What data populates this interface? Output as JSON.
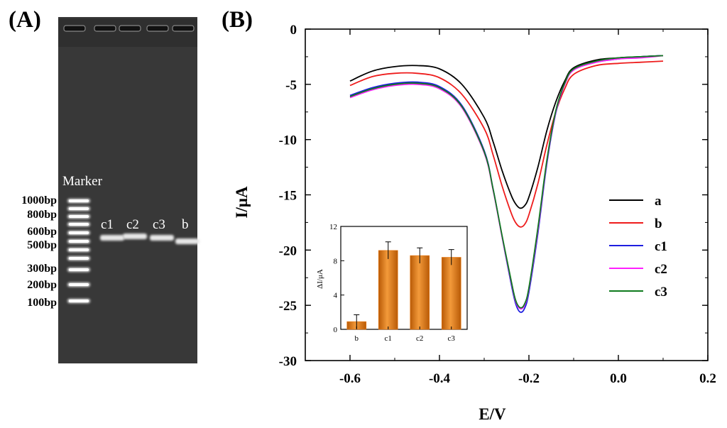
{
  "panels": {
    "a": {
      "letter": "(A)"
    },
    "b": {
      "letter": "(B)"
    }
  },
  "gel": {
    "marker_label": "Marker",
    "ladder_labels": [
      "1000bp",
      "800bp",
      "600bp",
      "500bp",
      "300bp",
      "200bp",
      "100bp"
    ],
    "lane_labels": [
      "c1",
      "c2",
      "c3",
      "b"
    ],
    "background_color": "#383838",
    "band_color": "#e8e8e8"
  },
  "chart_data": [
    {
      "type": "line",
      "xlabel": "E/V",
      "ylabel": "I/μA",
      "xlim": [
        -0.7,
        0.2
      ],
      "ylim": [
        -30,
        0
      ],
      "xticks": [
        -0.6,
        -0.4,
        -0.2,
        0.0,
        0.2
      ],
      "xtick_labels": [
        "-0.6",
        "-0.4",
        "-0.2",
        "0.0",
        "0.2"
      ],
      "yticks": [
        0,
        -5,
        -10,
        -15,
        -20,
        -25,
        -30
      ],
      "ytick_labels": [
        "0",
        "-5",
        "-10",
        "-15",
        "-20",
        "-25",
        "-30"
      ],
      "grid": false,
      "legend_position": "right",
      "x": [
        -0.6,
        -0.55,
        -0.5,
        -0.45,
        -0.4,
        -0.35,
        -0.3,
        -0.28,
        -0.26,
        -0.24,
        -0.23,
        -0.22,
        -0.21,
        -0.2,
        -0.18,
        -0.16,
        -0.14,
        -0.12,
        -0.1,
        -0.05,
        0.0,
        0.05,
        0.1
      ],
      "series": [
        {
          "name": "a",
          "color": "#000000",
          "values": [
            -4.7,
            -3.8,
            -3.4,
            -3.3,
            -3.6,
            -5.0,
            -8.0,
            -10.2,
            -12.8,
            -15.0,
            -15.8,
            -16.2,
            -16.0,
            -15.2,
            -12.5,
            -9.2,
            -6.6,
            -4.7,
            -3.5,
            -2.8,
            -2.6,
            -2.5,
            -2.4
          ]
        },
        {
          "name": "b",
          "color": "#ee1c1c",
          "values": [
            -5.1,
            -4.3,
            -4.0,
            -4.0,
            -4.4,
            -5.9,
            -9.0,
            -11.4,
            -14.2,
            -16.6,
            -17.5,
            -17.9,
            -17.7,
            -16.8,
            -14.0,
            -10.5,
            -7.5,
            -5.4,
            -4.1,
            -3.3,
            -3.1,
            -3.0,
            -2.9
          ]
        },
        {
          "name": "c1",
          "color": "#1f1fe0",
          "values": [
            -6.0,
            -5.3,
            -4.9,
            -4.8,
            -5.2,
            -6.9,
            -11.0,
            -14.5,
            -18.8,
            -23.0,
            -24.8,
            -25.6,
            -25.3,
            -23.8,
            -18.5,
            -12.2,
            -7.6,
            -5.0,
            -3.7,
            -3.0,
            -2.7,
            -2.5,
            -2.4
          ]
        },
        {
          "name": "c2",
          "color": "#ff20ff",
          "values": [
            -6.2,
            -5.5,
            -5.1,
            -5.0,
            -5.4,
            -7.1,
            -11.2,
            -14.6,
            -18.8,
            -22.8,
            -24.6,
            -25.3,
            -25.0,
            -23.5,
            -18.2,
            -12.0,
            -7.5,
            -5.0,
            -3.7,
            -3.0,
            -2.7,
            -2.6,
            -2.4
          ]
        },
        {
          "name": "c3",
          "color": "#0f7a1e",
          "values": [
            -6.1,
            -5.4,
            -5.0,
            -4.9,
            -5.3,
            -7.0,
            -11.1,
            -14.5,
            -18.7,
            -22.7,
            -24.5,
            -25.2,
            -24.9,
            -23.4,
            -18.0,
            -11.9,
            -7.4,
            -4.9,
            -3.6,
            -2.9,
            -2.6,
            -2.5,
            -2.4
          ]
        }
      ]
    },
    {
      "type": "bar",
      "ylabel": "ΔI/μA",
      "categories": [
        "b",
        "c1",
        "c2",
        "c3"
      ],
      "values": [
        0.9,
        9.2,
        8.6,
        8.4
      ],
      "errors": [
        0.8,
        1.0,
        0.9,
        0.9
      ],
      "ylim": [
        0,
        12
      ],
      "yticks": [
        0,
        4,
        8,
        12
      ],
      "ytick_labels": [
        "0",
        "4",
        "8",
        "12"
      ],
      "bar_color": "#e8760e",
      "grid": false
    }
  ]
}
